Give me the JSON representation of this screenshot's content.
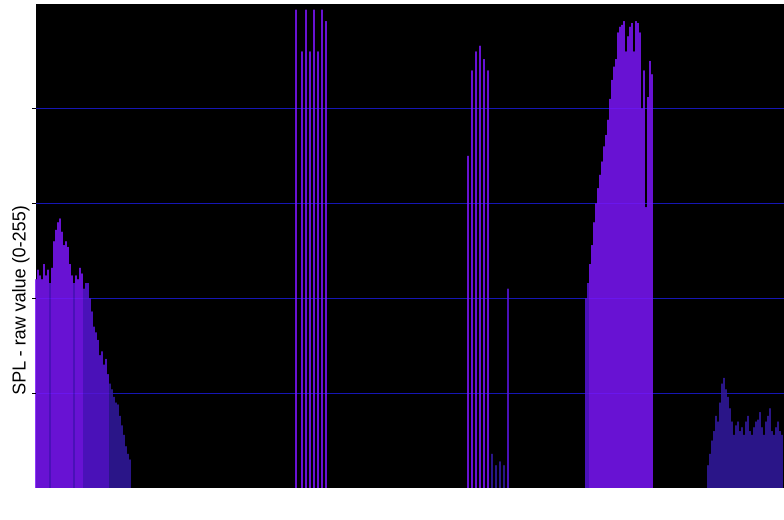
{
  "chart_data": {
    "type": "bar",
    "title": "",
    "xlabel": "",
    "ylabel": "SPL - raw value (0-255)",
    "ylim": [
      0,
      255
    ],
    "yticks": [
      50,
      100,
      150,
      200
    ],
    "grid": "horizontal",
    "x_range": [
      0,
      374
    ],
    "colors": {
      "background": "#000000",
      "gridline": "#1616b4",
      "bar_high": "#7a16f8",
      "bar_low": "#3219a0",
      "bar_mid": "#5814d8"
    },
    "series": [
      {
        "values": [
          [
            0,
            110
          ],
          [
            1,
            115
          ],
          [
            2,
            112
          ],
          [
            3,
            110
          ],
          [
            4,
            118
          ],
          [
            5,
            112
          ],
          [
            6,
            115
          ],
          [
            7,
            108
          ],
          [
            8,
            116
          ],
          [
            9,
            130
          ],
          [
            10,
            136
          ],
          [
            11,
            140
          ],
          [
            12,
            142
          ],
          [
            13,
            135
          ],
          [
            14,
            128
          ],
          [
            15,
            130
          ],
          [
            16,
            127
          ],
          [
            17,
            118
          ],
          [
            18,
            112
          ],
          [
            19,
            108
          ],
          [
            20,
            112
          ],
          [
            21,
            110
          ],
          [
            22,
            116
          ],
          [
            23,
            113
          ],
          [
            24,
            105
          ],
          [
            25,
            108
          ],
          [
            26,
            108
          ],
          [
            27,
            100
          ],
          [
            28,
            93
          ],
          [
            29,
            85
          ],
          [
            30,
            82
          ],
          [
            31,
            78
          ],
          [
            32,
            70
          ],
          [
            33,
            72
          ],
          [
            34,
            65
          ],
          [
            35,
            68
          ],
          [
            36,
            60
          ],
          [
            37,
            55
          ],
          [
            38,
            52
          ],
          [
            39,
            48
          ],
          [
            40,
            45
          ],
          [
            41,
            44
          ],
          [
            42,
            38
          ],
          [
            43,
            33
          ],
          [
            44,
            28
          ],
          [
            45,
            22
          ],
          [
            46,
            18
          ],
          [
            47,
            15
          ],
          [
            130,
            252
          ],
          [
            133,
            230
          ],
          [
            135,
            252
          ],
          [
            137,
            230
          ],
          [
            139,
            252
          ],
          [
            141,
            230
          ],
          [
            143,
            252
          ],
          [
            145,
            246
          ],
          [
            216,
            175
          ],
          [
            218,
            220
          ],
          [
            220,
            230
          ],
          [
            222,
            233
          ],
          [
            224,
            226
          ],
          [
            226,
            220
          ],
          [
            228,
            18
          ],
          [
            230,
            12
          ],
          [
            232,
            14
          ],
          [
            234,
            12
          ],
          [
            236,
            105
          ],
          [
            275,
            100
          ],
          [
            276,
            108
          ],
          [
            277,
            118
          ],
          [
            278,
            128
          ],
          [
            279,
            140
          ],
          [
            280,
            150
          ],
          [
            281,
            158
          ],
          [
            282,
            165
          ],
          [
            283,
            172
          ],
          [
            284,
            180
          ],
          [
            285,
            186
          ],
          [
            286,
            194
          ],
          [
            287,
            205
          ],
          [
            288,
            215
          ],
          [
            289,
            222
          ],
          [
            290,
            226
          ],
          [
            291,
            240
          ],
          [
            292,
            243
          ],
          [
            293,
            244
          ],
          [
            294,
            246
          ],
          [
            295,
            230
          ],
          [
            296,
            238
          ],
          [
            297,
            243
          ],
          [
            298,
            245
          ],
          [
            299,
            230
          ],
          [
            300,
            246
          ],
          [
            301,
            245
          ],
          [
            302,
            240
          ],
          [
            303,
            200
          ],
          [
            304,
            220
          ],
          [
            305,
            148
          ],
          [
            306,
            206
          ],
          [
            307,
            225
          ],
          [
            308,
            218
          ],
          [
            336,
            12
          ],
          [
            337,
            18
          ],
          [
            338,
            25
          ],
          [
            339,
            30
          ],
          [
            340,
            38
          ],
          [
            341,
            35
          ],
          [
            342,
            45
          ],
          [
            343,
            55
          ],
          [
            344,
            58
          ],
          [
            345,
            52
          ],
          [
            346,
            48
          ],
          [
            347,
            42
          ],
          [
            348,
            35
          ],
          [
            349,
            28
          ],
          [
            350,
            33
          ],
          [
            351,
            35
          ],
          [
            352,
            30
          ],
          [
            353,
            32
          ],
          [
            354,
            28
          ],
          [
            355,
            35
          ],
          [
            356,
            38
          ],
          [
            357,
            30
          ],
          [
            358,
            28
          ],
          [
            359,
            32
          ],
          [
            360,
            35
          ],
          [
            361,
            36
          ],
          [
            362,
            40
          ],
          [
            363,
            32
          ],
          [
            364,
            28
          ],
          [
            365,
            35
          ],
          [
            366,
            38
          ],
          [
            367,
            42
          ],
          [
            368,
            30
          ],
          [
            369,
            28
          ],
          [
            370,
            32
          ],
          [
            371,
            35
          ],
          [
            372,
            30
          ],
          [
            373,
            28
          ]
        ]
      }
    ]
  }
}
